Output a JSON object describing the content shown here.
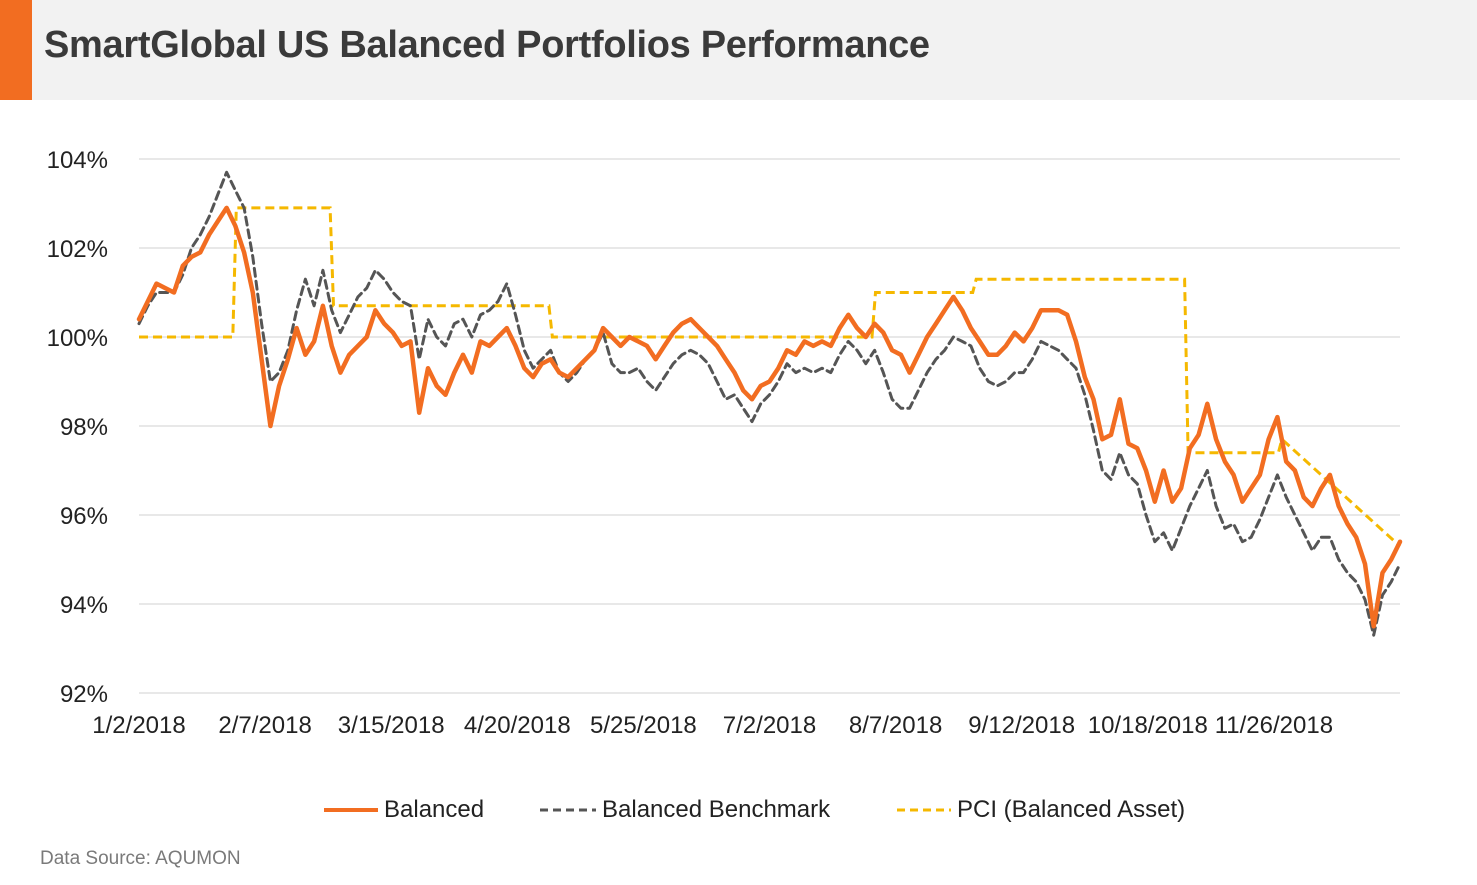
{
  "title": "SmartGlobal US Balanced Portfolios Performance",
  "source": "Data Source: AQUMON",
  "colors": {
    "accent": "#f26d21",
    "balanced": "#f26d21",
    "benchmark": "#555555",
    "pci": "#f5b800",
    "grid": "#d9d9d9",
    "header_bg": "#f2f2f2"
  },
  "chart_data": {
    "type": "line",
    "title": "",
    "xlabel": "",
    "ylabel": "",
    "ylim": [
      92,
      104
    ],
    "y_ticks": [
      92,
      94,
      96,
      98,
      100,
      102,
      104
    ],
    "y_tick_labels": [
      "92%",
      "94%",
      "96%",
      "98%",
      "100%",
      "102%",
      "104%"
    ],
    "x_tick_labels": [
      "1/2/2018",
      "2/7/2018",
      "3/15/2018",
      "4/20/2018",
      "5/25/2018",
      "7/2/2018",
      "8/7/2018",
      "9/12/2018",
      "10/18/2018",
      "11/26/2018"
    ],
    "grid": "horizontal",
    "legend_position": "bottom",
    "series": [
      {
        "name": "Balanced",
        "style": "solid",
        "values": [
          100.4,
          100.8,
          101.2,
          101.1,
          101.0,
          101.6,
          101.8,
          101.9,
          102.3,
          102.6,
          102.9,
          102.5,
          101.9,
          101.0,
          99.5,
          98.0,
          98.9,
          99.5,
          100.2,
          99.6,
          99.9,
          100.7,
          99.8,
          99.2,
          99.6,
          99.8,
          100.0,
          100.6,
          100.3,
          100.1,
          99.8,
          99.9,
          98.3,
          99.3,
          98.9,
          98.7,
          99.2,
          99.6,
          99.2,
          99.9,
          99.8,
          100.0,
          100.2,
          99.8,
          99.3,
          99.1,
          99.4,
          99.5,
          99.2,
          99.1,
          99.3,
          99.5,
          99.7,
          100.2,
          100.0,
          99.8,
          100.0,
          99.9,
          99.8,
          99.5,
          99.8,
          100.1,
          100.3,
          100.4,
          100.2,
          100.0,
          99.8,
          99.5,
          99.2,
          98.8,
          98.6,
          98.9,
          99.0,
          99.3,
          99.7,
          99.6,
          99.9,
          99.8,
          99.9,
          99.8,
          100.2,
          100.5,
          100.2,
          100.0,
          100.3,
          100.1,
          99.7,
          99.6,
          99.2,
          99.6,
          100.0,
          100.3,
          100.6,
          100.9,
          100.6,
          100.2,
          99.9,
          99.6,
          99.6,
          99.8,
          100.1,
          99.9,
          100.2,
          100.6,
          100.6,
          100.6,
          100.5,
          99.9,
          99.1,
          98.6,
          97.7,
          97.8,
          98.6,
          97.6,
          97.5,
          97.0,
          96.3,
          97.0,
          96.3,
          96.6,
          97.5,
          97.8,
          98.5,
          97.7,
          97.2,
          96.9,
          96.3,
          96.6,
          96.9,
          97.7,
          98.2,
          97.2,
          97.0,
          96.4,
          96.2,
          96.6,
          96.9,
          96.2,
          95.8,
          95.5,
          94.9,
          93.5,
          94.7,
          95.0,
          95.4
        ]
      },
      {
        "name": "Balanced Benchmark",
        "style": "dashed",
        "values": [
          100.3,
          100.7,
          101.0,
          101.0,
          101.0,
          101.4,
          102.0,
          102.3,
          102.7,
          103.2,
          103.7,
          103.3,
          102.9,
          101.8,
          100.3,
          99.0,
          99.2,
          99.7,
          100.6,
          101.3,
          100.7,
          101.5,
          100.6,
          100.1,
          100.5,
          100.9,
          101.1,
          101.5,
          101.3,
          101.0,
          100.8,
          100.7,
          99.5,
          100.4,
          100.0,
          99.8,
          100.3,
          100.4,
          100.0,
          100.5,
          100.6,
          100.8,
          101.2,
          100.5,
          99.7,
          99.3,
          99.5,
          99.7,
          99.2,
          99.0,
          99.2,
          99.5,
          99.7,
          100.1,
          99.4,
          99.2,
          99.2,
          99.3,
          99.0,
          98.8,
          99.1,
          99.4,
          99.6,
          99.7,
          99.6,
          99.4,
          99.0,
          98.6,
          98.7,
          98.4,
          98.1,
          98.5,
          98.7,
          99.0,
          99.4,
          99.2,
          99.3,
          99.2,
          99.3,
          99.2,
          99.6,
          99.9,
          99.7,
          99.4,
          99.7,
          99.2,
          98.6,
          98.4,
          98.4,
          98.8,
          99.2,
          99.5,
          99.7,
          100.0,
          99.9,
          99.8,
          99.3,
          99.0,
          98.9,
          99.0,
          99.2,
          99.2,
          99.5,
          99.9,
          99.8,
          99.7,
          99.5,
          99.3,
          98.7,
          97.9,
          97.0,
          96.8,
          97.4,
          96.9,
          96.7,
          96.0,
          95.4,
          95.6,
          95.2,
          95.7,
          96.2,
          96.6,
          97.0,
          96.2,
          95.7,
          95.8,
          95.4,
          95.5,
          95.9,
          96.4,
          96.9,
          96.4,
          96.0,
          95.6,
          95.2,
          95.5,
          95.5,
          95.0,
          94.7,
          94.5,
          94.1,
          93.3,
          94.2,
          94.5,
          94.9
        ]
      },
      {
        "name": "PCI (Balanced Asset)",
        "style": "dashed-step",
        "x": [
          "1/2/2018",
          "1/29/2018",
          "1/30/2018",
          "2/26/2018",
          "2/27/2018",
          "4/30/2018",
          "5/1/2018",
          "8/1/2018",
          "8/2/2018",
          "8/30/2018",
          "8/31/2018",
          "10/30/2018",
          "10/31/2018",
          "11/26/2018",
          "11/27/2018",
          "12/31/2018"
        ],
        "values": [
          100.0,
          100.0,
          102.9,
          102.9,
          100.7,
          100.7,
          100.0,
          100.0,
          101.0,
          101.0,
          101.3,
          101.3,
          97.4,
          97.4,
          97.7,
          95.3
        ]
      }
    ]
  }
}
